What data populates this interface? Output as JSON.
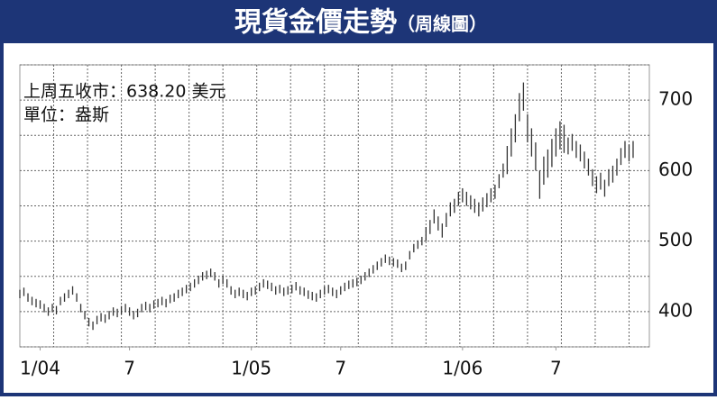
{
  "chart_data": {
    "type": "hilo",
    "title": "現貨金價走勢",
    "subtitle": "（周線圖）",
    "annotations": [
      "上周五收市：638.20 美元",
      "單位：盎斯"
    ],
    "series": [
      {
        "name": "low",
        "color": "#333333",
        "values": [
          419,
          422,
          414,
          409,
          406,
          404,
          399,
          394,
          399,
          396,
          409,
          414,
          419,
          424,
          414,
          399,
          389,
          379,
          374,
          382,
          386,
          384,
          389,
          394,
          392,
          396,
          399,
          394,
          389,
          392,
          399,
          402,
          399,
          404,
          406,
          409,
          406,
          412,
          414,
          419,
          422,
          426,
          429,
          434,
          439,
          444,
          446,
          449,
          444,
          434,
          439,
          434,
          424,
          419,
          422,
          419,
          416,
          422,
          424,
          429,
          434,
          432,
          429,
          424,
          426,
          422,
          424,
          426,
          430,
          424,
          422,
          418,
          416,
          414,
          419,
          424,
          426,
          422,
          419,
          424,
          429,
          432,
          434,
          436,
          439,
          444,
          449,
          454,
          459,
          464,
          469,
          466,
          464,
          462,
          456,
          459,
          474,
          484,
          489,
          494,
          500,
          510,
          525,
          515,
          505,
          520,
          535,
          540,
          550,
          555,
          550,
          545,
          540,
          535,
          542,
          548,
          555,
          560,
          575,
          590,
          595,
          620,
          640,
          670,
          685,
          640,
          620,
          600,
          560,
          580,
          590,
          605,
          620,
          630,
          625,
          623,
          628,
          618,
          613,
          603,
          593,
          578,
          568,
          573,
          563,
          578,
          583,
          593,
          608,
          618,
          613,
          618
        ]
      },
      {
        "name": "high",
        "color": "#333333",
        "values": [
          431,
          434,
          426,
          421,
          418,
          416,
          411,
          406,
          411,
          408,
          421,
          426,
          431,
          436,
          426,
          411,
          401,
          391,
          386,
          394,
          398,
          396,
          401,
          406,
          404,
          408,
          411,
          406,
          401,
          404,
          411,
          414,
          411,
          416,
          418,
          421,
          418,
          424,
          426,
          431,
          434,
          438,
          441,
          446,
          451,
          456,
          458,
          461,
          456,
          446,
          451,
          446,
          436,
          431,
          434,
          431,
          428,
          434,
          436,
          441,
          446,
          444,
          441,
          436,
          438,
          434,
          436,
          438,
          442,
          436,
          434,
          430,
          428,
          426,
          431,
          436,
          438,
          434,
          431,
          436,
          441,
          444,
          446,
          448,
          451,
          456,
          461,
          466,
          471,
          476,
          481,
          478,
          476,
          474,
          468,
          471,
          486,
          496,
          501,
          506,
          520,
          530,
          545,
          535,
          525,
          540,
          555,
          560,
          570,
          575,
          570,
          565,
          560,
          555,
          562,
          568,
          575,
          580,
          595,
          610,
          635,
          660,
          680,
          710,
          725,
          680,
          660,
          640,
          600,
          620,
          630,
          645,
          660,
          670,
          665,
          647,
          652,
          642,
          637,
          627,
          617,
          602,
          592,
          597,
          587,
          602,
          607,
          617,
          632,
          642,
          637,
          642
        ]
      }
    ],
    "xlim": [
      0,
      155
    ],
    "xticks": [
      {
        "value": 5,
        "label": "1/04"
      },
      {
        "value": 27,
        "label": "7"
      },
      {
        "value": 57,
        "label": "1/05"
      },
      {
        "value": 79,
        "label": "7"
      },
      {
        "value": 109,
        "label": "1/06"
      },
      {
        "value": 132,
        "label": "7"
      }
    ],
    "ylim": [
      350,
      750
    ],
    "yticks": [
      400,
      500,
      600,
      700
    ],
    "yminor": [
      350,
      450,
      550,
      650,
      750
    ],
    "grid": true
  }
}
